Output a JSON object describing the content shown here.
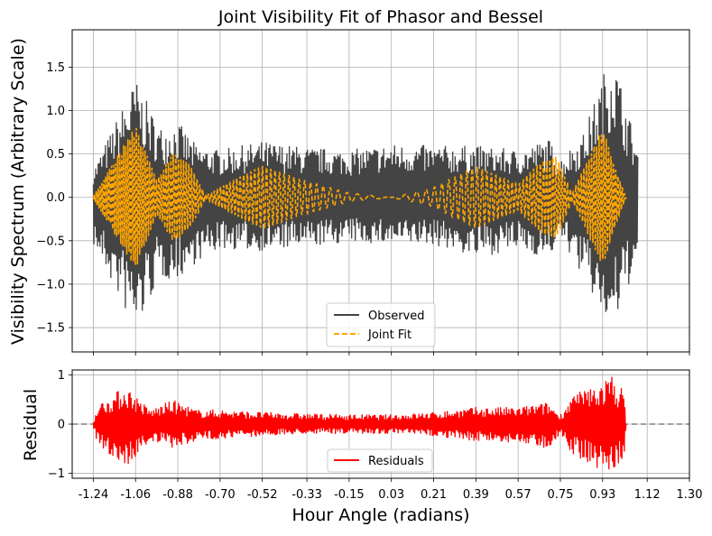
{
  "chart_data": [
    {
      "type": "line",
      "title": "Joint Visibility Fit of Phasor and Bessel",
      "xlabel": "",
      "ylabel": "Visibility Spectrum (Arbitrary Scale)",
      "xlim": [
        -1.33,
        1.3
      ],
      "ylim": [
        -1.78,
        1.93
      ],
      "yticks": [
        -1.5,
        -1.0,
        -0.5,
        0.0,
        0.5,
        1.0,
        1.5
      ],
      "ytick_labels": [
        "−1.5",
        "−1.0",
        "−0.5",
        "0.0",
        "0.5",
        "1.0",
        "1.5"
      ],
      "grid": true,
      "legend": {
        "placement": "lower-center",
        "entries": [
          "Observed",
          "Joint Fit"
        ]
      },
      "series": [
        {
          "name": "Observed",
          "color": "#444444",
          "style": "solid",
          "description_points": {
            "x": [
              -1.24,
              -1.06,
              -0.96,
              -0.88,
              -0.8,
              -0.7,
              -0.52,
              -0.33,
              -0.15,
              0.03,
              0.21,
              0.39,
              0.57,
              0.7,
              0.75,
              0.85,
              0.97,
              1.08
            ],
            "upper": [
              0.33,
              1.37,
              0.82,
              0.88,
              0.6,
              0.55,
              0.65,
              0.58,
              0.55,
              0.62,
              0.6,
              0.6,
              0.55,
              0.68,
              0.45,
              0.75,
              1.73,
              0.55
            ],
            "lower": [
              -0.55,
              -1.58,
              -0.95,
              -0.95,
              -0.75,
              -0.6,
              -0.62,
              -0.58,
              -0.52,
              -0.55,
              -0.55,
              -0.7,
              -0.6,
              -0.72,
              -0.45,
              -0.95,
              -1.6,
              -0.7
            ]
          }
        },
        {
          "name": "Joint Fit",
          "color": "#FFA500",
          "style": "dashed",
          "envelope": {
            "x": [
              -1.24,
              -1.06,
              -0.97,
              -0.9,
              -0.83,
              -0.76,
              -0.68,
              -0.52,
              -0.35,
              -0.15,
              0.03,
              0.2,
              0.39,
              0.57,
              0.66,
              0.73,
              0.8,
              0.93,
              1.03
            ],
            "amplitude": [
              0.02,
              0.83,
              0.2,
              0.52,
              0.38,
              0.02,
              0.15,
              0.37,
              0.2,
              0.05,
              0.0,
              0.1,
              0.36,
              0.15,
              0.4,
              0.5,
              0.05,
              0.8,
              0.0
            ]
          }
        }
      ]
    },
    {
      "type": "line",
      "title": "",
      "xlabel": "Hour Angle (radians)",
      "ylabel": "Residual",
      "xlim": [
        -1.33,
        1.3
      ],
      "ylim": [
        -1.1,
        1.1
      ],
      "xticks": [
        -1.24,
        -1.06,
        -0.88,
        -0.7,
        -0.52,
        -0.33,
        -0.15,
        0.03,
        0.21,
        0.39,
        0.57,
        0.75,
        0.93,
        1.12,
        1.3
      ],
      "xtick_labels": [
        "-1.24",
        "-1.06",
        "-0.88",
        "-0.70",
        "-0.52",
        "-0.33",
        "-0.15",
        "0.03",
        "0.21",
        "0.39",
        "0.57",
        "0.75",
        "0.93",
        "1.12",
        "1.30"
      ],
      "yticks": [
        -1,
        0,
        1
      ],
      "ytick_labels": [
        "−1",
        "0",
        "1"
      ],
      "grid": true,
      "reference_line": {
        "y": 0,
        "color": "#808080",
        "style": "dashed"
      },
      "legend": {
        "placement": "lower-center",
        "entries": [
          "Residuals"
        ]
      },
      "series": [
        {
          "name": "Residuals",
          "color": "#FF0000",
          "style": "solid",
          "envelope": {
            "x": [
              -1.24,
              -1.22,
              -1.1,
              -1.0,
              -0.9,
              -0.8,
              -0.7,
              -0.52,
              -0.33,
              -0.15,
              0.03,
              0.21,
              0.39,
              0.57,
              0.7,
              0.75,
              0.8,
              0.9,
              0.97,
              1.02,
              1.03
            ],
            "upper": [
              0.05,
              0.4,
              0.8,
              0.3,
              0.5,
              0.3,
              0.3,
              0.25,
              0.22,
              0.2,
              0.2,
              0.25,
              0.35,
              0.35,
              0.45,
              0.2,
              0.6,
              0.8,
              1.0,
              0.7,
              0.0
            ],
            "lower": [
              -0.05,
              -0.45,
              -0.9,
              -0.35,
              -0.5,
              -0.35,
              -0.3,
              -0.25,
              -0.2,
              -0.2,
              -0.2,
              -0.25,
              -0.35,
              -0.4,
              -0.5,
              -0.2,
              -0.6,
              -0.9,
              -1.0,
              -0.8,
              0.0
            ]
          }
        }
      ]
    }
  ]
}
